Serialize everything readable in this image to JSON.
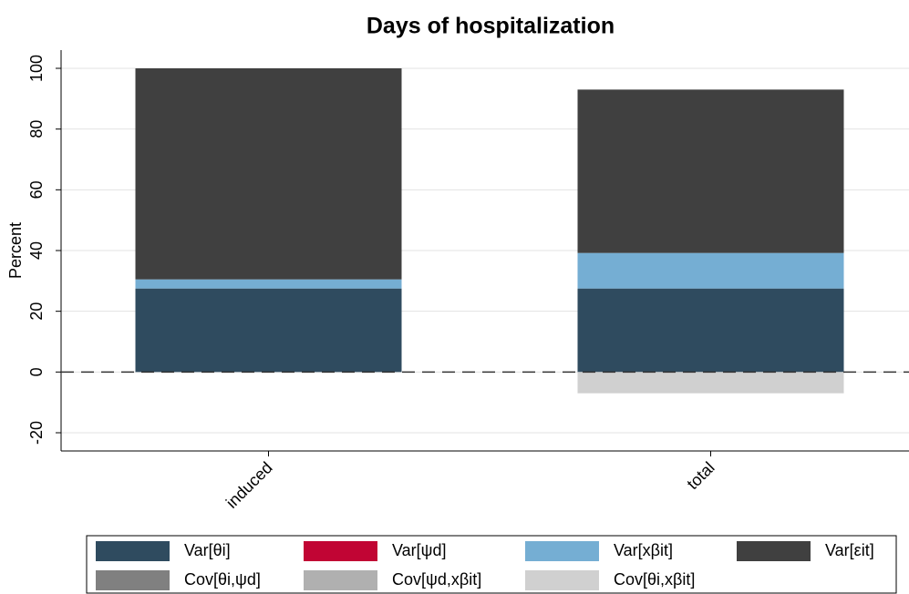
{
  "chart_data": {
    "type": "stacked_bar",
    "title": "Days of hospitalization",
    "y_label": "Percent",
    "categories": [
      "induced",
      "total"
    ],
    "series": [
      {
        "name": "Var[θi]",
        "color": "#2f4b5f",
        "values": [
          27.5,
          27.5
        ]
      },
      {
        "name": "Var[ψd]",
        "color": "#c10534",
        "values": [
          0,
          0
        ]
      },
      {
        "name": "Var[xβit]",
        "color": "#75aed3",
        "values": [
          3,
          11.7
        ]
      },
      {
        "name": "Var[εit]",
        "color": "#404040",
        "values": [
          69.5,
          53.8
        ]
      },
      {
        "name": "Cov[θi,ψd]",
        "color": "#808080",
        "values": [
          0,
          0
        ]
      },
      {
        "name": "Cov[ψd,xβit]",
        "color": "#b0b0b0",
        "values": [
          0,
          0
        ]
      },
      {
        "name": "Cov[θi,xβit]",
        "color": "#d0d0d0",
        "values": [
          0,
          -7
        ]
      }
    ],
    "ylim": [
      -26,
      106
    ],
    "yticks": [
      -20,
      0,
      20,
      40,
      60,
      80,
      100
    ],
    "grid": true
  }
}
